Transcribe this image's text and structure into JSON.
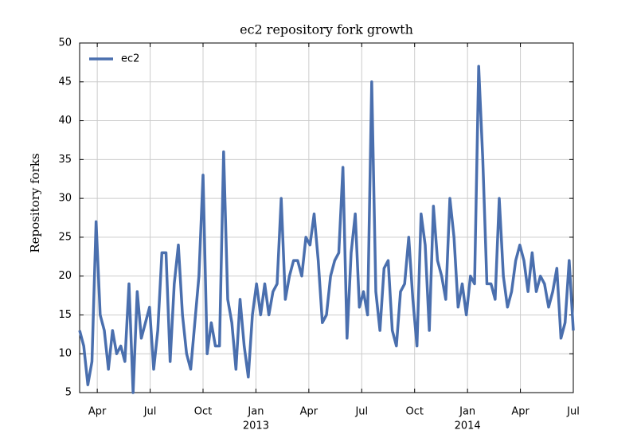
{
  "chart_data": {
    "type": "line",
    "title": "ec2 repository fork growth",
    "ylabel": "Repository forks",
    "series": [
      {
        "name": "ec2",
        "color": "#4a6fae",
        "values": [
          13,
          11,
          6,
          9,
          27,
          15,
          13,
          8,
          13,
          10,
          11,
          9,
          19,
          5,
          18,
          12,
          14,
          16,
          8,
          13,
          23,
          23,
          9,
          19,
          24,
          15,
          10,
          8,
          14,
          20,
          33,
          10,
          14,
          11,
          11,
          36,
          17,
          14,
          8,
          17,
          11,
          7,
          15,
          19,
          15,
          19,
          15,
          18,
          19,
          30,
          17,
          20,
          22,
          22,
          20,
          25,
          24,
          28,
          22,
          14,
          15,
          20,
          22,
          23,
          34,
          12,
          23,
          28,
          16,
          18,
          15,
          45,
          18,
          13,
          21,
          22,
          13,
          11,
          18,
          19,
          25,
          17,
          11,
          28,
          24,
          13,
          29,
          22,
          20,
          17,
          30,
          25,
          16,
          19,
          15,
          20,
          19,
          47,
          35,
          19,
          19,
          17,
          30,
          20,
          16,
          18,
          22,
          24,
          22,
          18,
          23,
          18,
          20,
          19,
          16,
          18,
          21,
          12,
          14,
          22,
          13
        ]
      }
    ],
    "xlim": [
      "2012-03",
      "2014-07"
    ],
    "xticks": [
      {
        "value": "2012-04",
        "label": "Apr"
      },
      {
        "value": "2012-07",
        "label": "Jul"
      },
      {
        "value": "2012-10",
        "label": "Oct"
      },
      {
        "value": "2013-01",
        "label": "Jan",
        "year": "2013"
      },
      {
        "value": "2013-04",
        "label": "Apr"
      },
      {
        "value": "2013-07",
        "label": "Jul"
      },
      {
        "value": "2013-10",
        "label": "Oct"
      },
      {
        "value": "2014-01",
        "label": "Jan",
        "year": "2014"
      },
      {
        "value": "2014-04",
        "label": "Apr"
      },
      {
        "value": "2014-07",
        "label": "Jul"
      }
    ],
    "ylim": [
      5,
      50
    ],
    "yticks": [
      5,
      10,
      15,
      20,
      25,
      30,
      35,
      40,
      45,
      50
    ],
    "grid": true,
    "legend": "upper left"
  }
}
